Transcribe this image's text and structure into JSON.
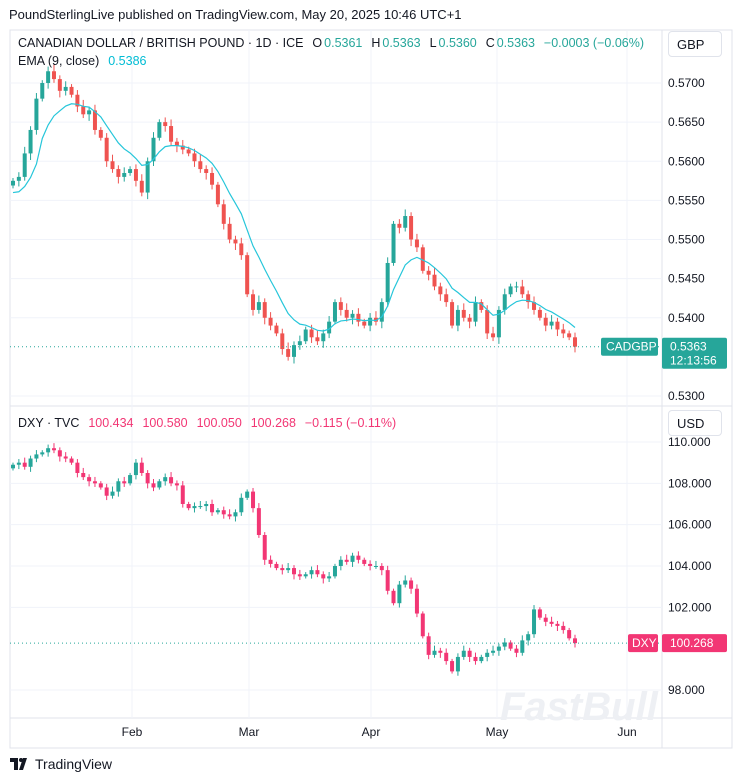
{
  "header": {
    "published": "PoundSterlingLive published on TradingView.com, May 20, 2025 10:46 UTC+1"
  },
  "top": {
    "symbol": "CANADIAN DOLLAR / BRITISH POUND · 1D · ICE",
    "o_label": "O",
    "o": "0.5361",
    "h_label": "H",
    "h": "0.5363",
    "l_label": "L",
    "l": "0.5360",
    "c_label": "C",
    "c": "0.5363",
    "change": "−0.0003 (−0.06%)",
    "ema_label": "EMA (9, close)",
    "ema_value": "0.5386",
    "currency": "GBP",
    "tag_name": "CADGBP",
    "tag_price": "0.5363",
    "tag_timer": "12:13:56"
  },
  "bottom": {
    "symbol": "DXY · TVC",
    "o": "100.434",
    "h": "100.580",
    "l": "100.050",
    "c": "100.268",
    "change": "−0.115 (−0.11%)",
    "currency": "USD",
    "tag_name": "DXY",
    "tag_price": "100.268"
  },
  "footer": {
    "brand": "TradingView",
    "watermark": "FastBull"
  },
  "colors": {
    "up": "#26a69a",
    "down": "#ef5350",
    "dxy_up": "#26a69a",
    "dxy_down": "#f23674",
    "ema": "#26c6da"
  },
  "chart_data": [
    {
      "type": "candlestick",
      "title": "CANADIAN DOLLAR / BRITISH POUND · 1D · ICE",
      "yticks": [
        "0.5700",
        "0.5650",
        "0.5600",
        "0.5550",
        "0.5500",
        "0.5450",
        "0.5400",
        "0.5300"
      ],
      "ylim": [
        0.5295,
        0.5745
      ],
      "xticks": [
        "Feb",
        "Mar",
        "Apr",
        "May",
        "Jun"
      ],
      "grid": true,
      "closes": [
        0.5575,
        0.558,
        0.561,
        0.564,
        0.568,
        0.57,
        0.5715,
        0.5705,
        0.569,
        0.5695,
        0.5685,
        0.567,
        0.566,
        0.5665,
        0.564,
        0.563,
        0.56,
        0.559,
        0.558,
        0.5585,
        0.559,
        0.5575,
        0.556,
        0.56,
        0.563,
        0.565,
        0.5645,
        0.5625,
        0.562,
        0.5615,
        0.561,
        0.56,
        0.559,
        0.5585,
        0.557,
        0.5545,
        0.552,
        0.55,
        0.5495,
        0.548,
        0.543,
        0.541,
        0.542,
        0.54,
        0.539,
        0.538,
        0.536,
        0.535,
        0.5365,
        0.537,
        0.5385,
        0.5375,
        0.537,
        0.538,
        0.5395,
        0.542,
        0.541,
        0.54,
        0.5405,
        0.5395,
        0.539,
        0.54,
        0.5395,
        0.542,
        0.547,
        0.552,
        0.5515,
        0.553,
        0.55,
        0.549,
        0.546,
        0.5455,
        0.544,
        0.543,
        0.542,
        0.539,
        0.541,
        0.54,
        0.5395,
        0.542,
        0.541,
        0.538,
        0.5375,
        0.541,
        0.543,
        0.544,
        0.544,
        0.543,
        0.542,
        0.541,
        0.54,
        0.539,
        0.5395,
        0.5385,
        0.538,
        0.5375,
        0.5363
      ],
      "ema_period": 9
    },
    {
      "type": "candlestick",
      "title": "DXY · TVC",
      "yticks": [
        "110.000",
        "108.000",
        "106.000",
        "104.000",
        "102.000",
        "98.000"
      ],
      "ylim": [
        97.4,
        110.2
      ],
      "grid": true,
      "closes": [
        108.9,
        109.0,
        108.8,
        109.2,
        109.4,
        109.5,
        109.7,
        109.6,
        109.3,
        109.2,
        109.0,
        108.5,
        108.3,
        108.1,
        108.0,
        107.8,
        107.4,
        107.6,
        108.1,
        108.0,
        108.4,
        109.0,
        108.5,
        108.0,
        107.8,
        108.1,
        108.3,
        108.0,
        107.9,
        107.0,
        106.8,
        106.9,
        106.9,
        107.0,
        106.6,
        106.7,
        106.5,
        106.4,
        106.6,
        107.3,
        107.6,
        106.8,
        105.5,
        104.3,
        104.1,
        103.9,
        103.8,
        103.9,
        103.6,
        103.5,
        103.6,
        103.8,
        103.6,
        103.4,
        103.5,
        104.0,
        104.3,
        104.2,
        104.5,
        104.3,
        104.1,
        104.0,
        104.0,
        103.8,
        102.8,
        102.2,
        103.1,
        103.3,
        102.9,
        101.7,
        100.6,
        99.7,
        99.9,
        99.8,
        99.4,
        98.9,
        99.6,
        99.9,
        99.6,
        99.4,
        99.6,
        99.8,
        99.9,
        100.1,
        100.3,
        100.0,
        99.8,
        100.4,
        100.7,
        101.9,
        101.5,
        101.3,
        101.2,
        101.1,
        100.9,
        100.5,
        100.268
      ]
    }
  ]
}
